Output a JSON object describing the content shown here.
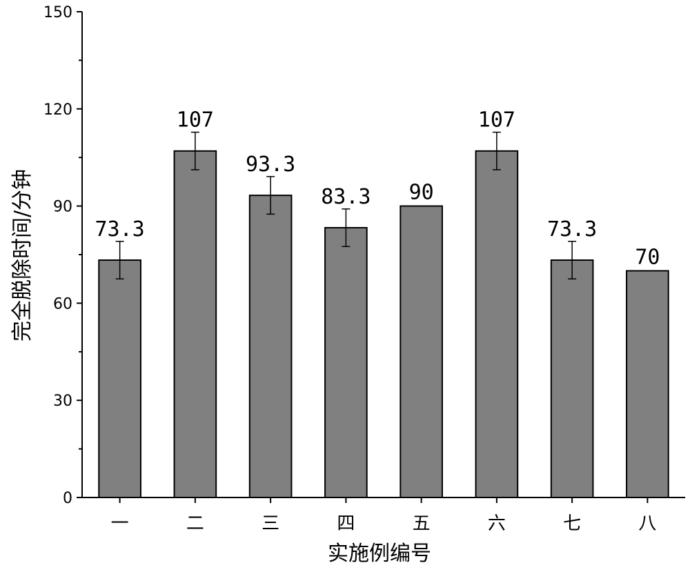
{
  "chart_data": {
    "type": "bar",
    "xlabel": "实施例编号",
    "ylabel": "完全脱除时间/分钟",
    "categories": [
      "一",
      "二",
      "三",
      "四",
      "五",
      "六",
      "七",
      "八"
    ],
    "values": [
      73.3,
      107,
      93.3,
      83.3,
      90,
      107,
      73.3,
      70
    ],
    "data_labels": [
      "73.3",
      "107",
      "93.3",
      "83.3",
      "90",
      "107",
      "73.3",
      "70"
    ],
    "error": [
      5.8,
      5.8,
      5.8,
      5.8,
      0,
      5.8,
      5.8,
      0
    ],
    "ylim": [
      0,
      150
    ],
    "yticks": [
      0,
      30,
      60,
      90,
      120,
      150
    ],
    "grid": false,
    "legend": "none",
    "colors": {
      "bar_fill": "#808080",
      "bar_stroke": "#000000",
      "axis": "#000000"
    }
  }
}
